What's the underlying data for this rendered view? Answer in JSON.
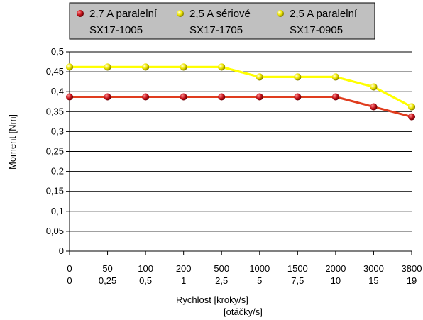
{
  "chart_data": {
    "type": "line",
    "x_ticks": [
      {
        "top": "0",
        "bottom": "0"
      },
      {
        "top": "50",
        "bottom": "0,25"
      },
      {
        "top": "100",
        "bottom": "0,5"
      },
      {
        "top": "200",
        "bottom": "1"
      },
      {
        "top": "500",
        "bottom": "2,5"
      },
      {
        "top": "1000",
        "bottom": "5"
      },
      {
        "top": "1500",
        "bottom": "7,5"
      },
      {
        "top": "2000",
        "bottom": "10"
      },
      {
        "top": "3000",
        "bottom": "15"
      },
      {
        "top": "3800",
        "bottom": "19"
      }
    ],
    "y_ticks": [
      "0",
      "0,05",
      "0,1",
      "0,15",
      "0,2",
      "0,25",
      "0,3",
      "0,35",
      "0,4",
      "0,45",
      "0,5"
    ],
    "ylim": [
      0,
      0.5
    ],
    "y_step": 0.05,
    "xlabel": "Rychlost [kroky/s]",
    "xlabel2": "[otáčky/s]",
    "ylabel": "Moment [Nm]",
    "grid": "horizontal",
    "legend_position": "top",
    "series": [
      {
        "name_line1": "2,7 A paralelní",
        "name_line2": "SX17-1005",
        "line_color": "#e03c1e",
        "marker_color": "#c0141c",
        "values": [
          0.387,
          0.387,
          0.387,
          0.387,
          0.387,
          0.387,
          0.387,
          0.387,
          0.362,
          0.337
        ]
      },
      {
        "name_line1": "2,5 A sériové",
        "name_line2": "SX17-1705",
        "line_color": "#ffff00",
        "marker_color": "#e8e000",
        "values": [
          0.462,
          0.462,
          0.462,
          0.462,
          0.462,
          0.437,
          0.437,
          0.437,
          0.412,
          0.362
        ]
      },
      {
        "name_line1": "2,5 A paralelní",
        "name_line2": "SX17-0905",
        "line_color": "#ffff00",
        "marker_color": "#e8e000",
        "values": [
          0.462,
          0.462,
          0.462,
          0.462,
          0.462,
          0.437,
          0.437,
          0.437,
          0.412,
          0.362
        ]
      }
    ]
  }
}
